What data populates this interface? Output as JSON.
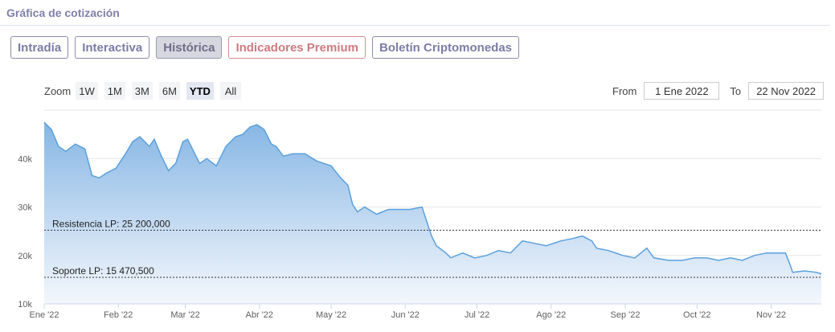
{
  "header": {
    "title": "Gráfica de cotización"
  },
  "tabs": [
    {
      "label": "Intradía",
      "active": false,
      "premium": false
    },
    {
      "label": "Interactiva",
      "active": false,
      "premium": false
    },
    {
      "label": "Histórica",
      "active": true,
      "premium": false
    },
    {
      "label": "Indicadores Premium",
      "active": false,
      "premium": true
    },
    {
      "label": "Boletín Criptomonedas",
      "active": false,
      "premium": false
    }
  ],
  "zoom": {
    "label": "Zoom",
    "buttons": [
      "1W",
      "1M",
      "3M",
      "6M",
      "YTD",
      "All"
    ],
    "selected": "YTD"
  },
  "range": {
    "from_label": "From",
    "from_value": "1 Ene 2022",
    "to_label": "To",
    "to_value": "22 Nov 2022"
  },
  "colors": {
    "line": "#5ba0dc",
    "fill_top": "#7fb2e3",
    "fill_bottom": "#f2f6fc",
    "level_line": "#333333"
  },
  "chart_data": {
    "type": "area",
    "x_range": [
      "2022-01-01",
      "2022-11-22"
    ],
    "ylim": [
      10000,
      50000
    ],
    "y_ticks": [
      10000,
      20000,
      30000,
      40000
    ],
    "y_tick_labels": [
      "10k",
      "20k",
      "30k",
      "40k"
    ],
    "x_ticks": [
      "2022-01-01",
      "2022-02-01",
      "2022-03-01",
      "2022-04-01",
      "2022-05-01",
      "2022-06-01",
      "2022-07-01",
      "2022-08-01",
      "2022-09-01",
      "2022-10-01",
      "2022-11-01"
    ],
    "x_tick_labels": [
      "Ene '22",
      "Feb '22",
      "Mar '22",
      "Abr '22",
      "May '22",
      "Jun '22",
      "Jul '22",
      "Ago '22",
      "Sep '22",
      "Oct '22",
      "Nov '22"
    ],
    "grid": true,
    "levels": [
      {
        "label": "Resistencia LP: 25 200,000",
        "value": 25200
      },
      {
        "label": "Soporte LP: 15 470,500",
        "value": 15470
      }
    ],
    "series": [
      {
        "x": [
          "2022-01-01",
          "2022-01-04",
          "2022-01-07",
          "2022-01-10",
          "2022-01-14",
          "2022-01-18",
          "2022-01-21",
          "2022-01-24",
          "2022-01-27",
          "2022-01-31",
          "2022-02-04",
          "2022-02-07",
          "2022-02-10",
          "2022-02-14",
          "2022-02-16",
          "2022-02-19",
          "2022-02-22",
          "2022-02-25",
          "2022-02-28",
          "2022-03-02",
          "2022-03-07",
          "2022-03-10",
          "2022-03-14",
          "2022-03-18",
          "2022-03-22",
          "2022-03-25",
          "2022-03-28",
          "2022-03-31",
          "2022-04-03",
          "2022-04-06",
          "2022-04-08",
          "2022-04-11",
          "2022-04-15",
          "2022-04-20",
          "2022-04-25",
          "2022-04-28",
          "2022-05-01",
          "2022-05-05",
          "2022-05-08",
          "2022-05-10",
          "2022-05-12",
          "2022-05-15",
          "2022-05-20",
          "2022-05-25",
          "2022-05-30",
          "2022-06-03",
          "2022-06-08",
          "2022-06-12",
          "2022-06-14",
          "2022-06-18",
          "2022-06-20",
          "2022-06-25",
          "2022-06-30",
          "2022-07-05",
          "2022-07-10",
          "2022-07-15",
          "2022-07-20",
          "2022-07-25",
          "2022-07-30",
          "2022-08-05",
          "2022-08-10",
          "2022-08-14",
          "2022-08-18",
          "2022-08-20",
          "2022-08-25",
          "2022-08-31",
          "2022-09-05",
          "2022-09-10",
          "2022-09-13",
          "2022-09-19",
          "2022-09-25",
          "2022-09-30",
          "2022-10-05",
          "2022-10-10",
          "2022-10-15",
          "2022-10-20",
          "2022-10-25",
          "2022-10-30",
          "2022-11-04",
          "2022-11-07",
          "2022-11-09",
          "2022-11-10",
          "2022-11-15",
          "2022-11-20",
          "2022-11-22"
        ],
        "y": [
          47500,
          46000,
          42500,
          41500,
          43000,
          42000,
          36500,
          36000,
          37000,
          38000,
          41000,
          43500,
          44500,
          42500,
          44000,
          40500,
          37500,
          39000,
          43500,
          44000,
          39000,
          40000,
          38500,
          42500,
          44500,
          45000,
          46500,
          47000,
          46000,
          43000,
          42500,
          40500,
          41000,
          41000,
          39500,
          39000,
          38500,
          36000,
          34500,
          30500,
          29000,
          30000,
          28500,
          29500,
          29500,
          29500,
          30000,
          24000,
          22000,
          20500,
          19500,
          20500,
          19500,
          20000,
          21000,
          20500,
          23000,
          22500,
          22000,
          23000,
          23500,
          24000,
          23000,
          21500,
          21000,
          20000,
          19500,
          21500,
          19500,
          19000,
          19000,
          19500,
          19500,
          19000,
          19500,
          19000,
          20000,
          20500,
          20500,
          20500,
          18000,
          16500,
          16800,
          16500,
          16200
        ]
      }
    ]
  }
}
